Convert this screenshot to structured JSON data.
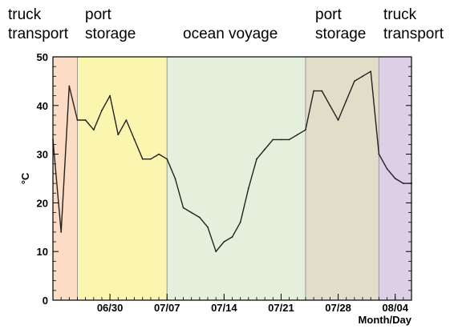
{
  "chart_data": {
    "type": "line",
    "title": "",
    "xlabel": "Month/Day",
    "ylabel": "°C",
    "ylim": [
      0,
      50
    ],
    "xlim": [
      "06/23",
      "08/06"
    ],
    "grid": false,
    "legend": "none",
    "x_ticks": [
      "06/30",
      "07/07",
      "07/14",
      "07/21",
      "07/28",
      "08/04"
    ],
    "y_ticks": [
      0,
      10,
      20,
      30,
      40,
      50
    ],
    "phases": [
      {
        "label_lines": [
          "truck",
          "transport"
        ],
        "start": "06/23",
        "end": "06/26",
        "color": "#fcdcc4"
      },
      {
        "label_lines": [
          "port",
          "storage"
        ],
        "start": "06/26",
        "end": "07/07",
        "color": "#faf6b0"
      },
      {
        "label_lines": [
          "ocean voyage"
        ],
        "start": "07/07",
        "end": "07/24",
        "color": "#e4f0dc"
      },
      {
        "label_lines": [
          "port",
          "storage"
        ],
        "start": "07/24",
        "end": "08/02",
        "color": "#e2ddc8"
      },
      {
        "label_lines": [
          "truck",
          "transport"
        ],
        "start": "08/02",
        "end": "08/06",
        "color": "#dccfe6"
      }
    ],
    "series": [
      {
        "color": "#222222",
        "points": [
          [
            "06/23",
            33
          ],
          [
            "06/24",
            14
          ],
          [
            "06/25",
            44
          ],
          [
            "06/26",
            37
          ],
          [
            "06/27",
            37
          ],
          [
            "06/28",
            35
          ],
          [
            "06/29",
            39
          ],
          [
            "06/30",
            42
          ],
          [
            "07/01",
            34
          ],
          [
            "07/02",
            37
          ],
          [
            "07/03",
            33
          ],
          [
            "07/04",
            29
          ],
          [
            "07/05",
            29
          ],
          [
            "07/06",
            30
          ],
          [
            "07/07",
            29
          ],
          [
            "07/08",
            25
          ],
          [
            "07/09",
            19
          ],
          [
            "07/10",
            18
          ],
          [
            "07/11",
            17
          ],
          [
            "07/12",
            15
          ],
          [
            "07/13",
            10
          ],
          [
            "07/14",
            12
          ],
          [
            "07/15",
            13
          ],
          [
            "07/16",
            16
          ],
          [
            "07/17",
            23
          ],
          [
            "07/18",
            29
          ],
          [
            "07/19",
            31
          ],
          [
            "07/20",
            33
          ],
          [
            "07/21",
            33
          ],
          [
            "07/22",
            33
          ],
          [
            "07/23",
            34
          ],
          [
            "07/24",
            35
          ],
          [
            "07/25",
            43
          ],
          [
            "07/26",
            43
          ],
          [
            "07/27",
            40
          ],
          [
            "07/28",
            37
          ],
          [
            "07/29",
            41
          ],
          [
            "07/30",
            45
          ],
          [
            "07/31",
            46
          ],
          [
            "08/01",
            47
          ],
          [
            "08/02",
            30
          ],
          [
            "08/03",
            27
          ],
          [
            "08/04",
            25
          ],
          [
            "08/05",
            24
          ],
          [
            "08/06",
            24
          ]
        ]
      }
    ]
  }
}
